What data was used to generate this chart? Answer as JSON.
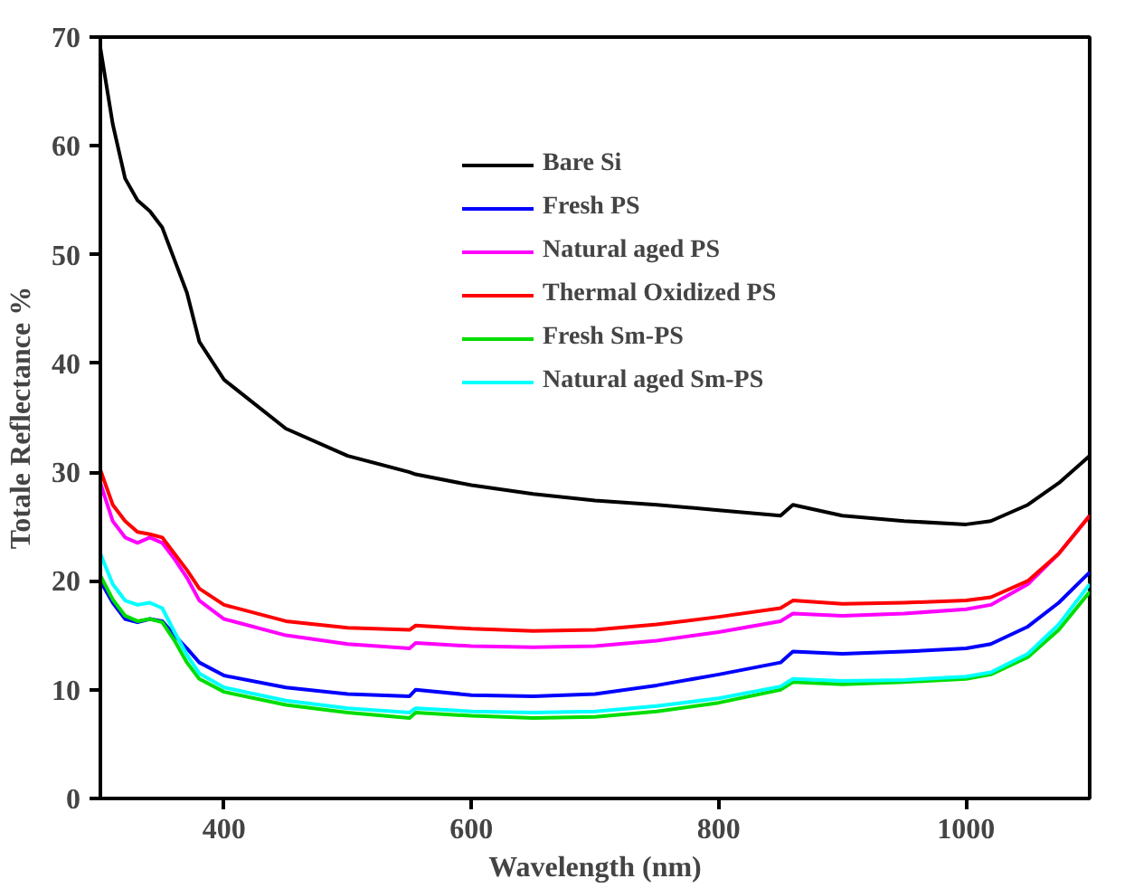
{
  "chart_data": {
    "type": "line",
    "xlabel": "Wavelength (nm)",
    "ylabel": "Totale Reflectance %",
    "x": [
      300,
      310,
      320,
      330,
      340,
      350,
      360,
      370,
      380,
      400,
      450,
      500,
      550,
      555,
      600,
      650,
      700,
      750,
      800,
      850,
      860,
      900,
      950,
      1000,
      1020,
      1050,
      1075,
      1100
    ],
    "series": [
      {
        "name": "Bare Si",
        "color": "#000000",
        "values": [
          69,
          62,
          57,
          55,
          54,
          52.5,
          49.5,
          46.5,
          42,
          38.5,
          34,
          31.5,
          30,
          29.8,
          28.8,
          28,
          27.4,
          27,
          26.5,
          26,
          27,
          26,
          25.5,
          25.2,
          25.5,
          27,
          29,
          31.5
        ]
      },
      {
        "name": "Fresh PS",
        "color": "#0000ff",
        "values": [
          20,
          18,
          16.5,
          16.2,
          16.5,
          16.3,
          15,
          13.8,
          12.5,
          11.3,
          10.2,
          9.6,
          9.4,
          10,
          9.5,
          9.4,
          9.6,
          10.4,
          11.4,
          12.5,
          13.5,
          13.3,
          13.5,
          13.8,
          14.2,
          15.8,
          18,
          20.8
        ]
      },
      {
        "name": "Natural aged PS",
        "color": "#ff00ff",
        "values": [
          29,
          25.5,
          24,
          23.5,
          24,
          23.5,
          22,
          20.3,
          18.2,
          16.5,
          15,
          14.2,
          13.8,
          14.3,
          14,
          13.9,
          14,
          14.5,
          15.3,
          16.3,
          17,
          16.8,
          17,
          17.4,
          17.8,
          19.7,
          22.5,
          26
        ]
      },
      {
        "name": "Thermal Oxidized PS",
        "color": "#ff0000",
        "values": [
          30.2,
          27,
          25.5,
          24.5,
          24.3,
          24,
          22.5,
          21,
          19.3,
          17.8,
          16.3,
          15.7,
          15.5,
          15.9,
          15.6,
          15.4,
          15.5,
          16,
          16.7,
          17.5,
          18.2,
          17.9,
          18,
          18.2,
          18.5,
          20,
          22.5,
          26
        ]
      },
      {
        "name": "Fresh Sm-PS",
        "color": "#00dd00",
        "values": [
          20.5,
          18.3,
          16.8,
          16.3,
          16.5,
          16.2,
          14.5,
          12.5,
          11,
          9.8,
          8.6,
          7.9,
          7.4,
          7.9,
          7.6,
          7.4,
          7.5,
          8,
          8.8,
          10,
          10.7,
          10.5,
          10.7,
          11,
          11.4,
          13,
          15.5,
          19
        ]
      },
      {
        "name": "Natural aged Sm-PS",
        "color": "#00ffff",
        "values": [
          22.5,
          19.7,
          18.2,
          17.8,
          18,
          17.5,
          15.3,
          13.2,
          11.5,
          10.2,
          9,
          8.3,
          7.9,
          8.3,
          8,
          7.9,
          8,
          8.5,
          9.2,
          10.3,
          11,
          10.8,
          10.9,
          11.2,
          11.6,
          13.3,
          16,
          19.7
        ]
      }
    ],
    "xlim": [
      300,
      1100
    ],
    "xticks": [
      400,
      600,
      800,
      1000
    ],
    "ylim": [
      0,
      70
    ],
    "yticks": [
      0,
      10,
      20,
      30,
      40,
      50,
      60,
      70
    ],
    "grid": false,
    "legend": "top right",
    "line_style": "solid"
  }
}
